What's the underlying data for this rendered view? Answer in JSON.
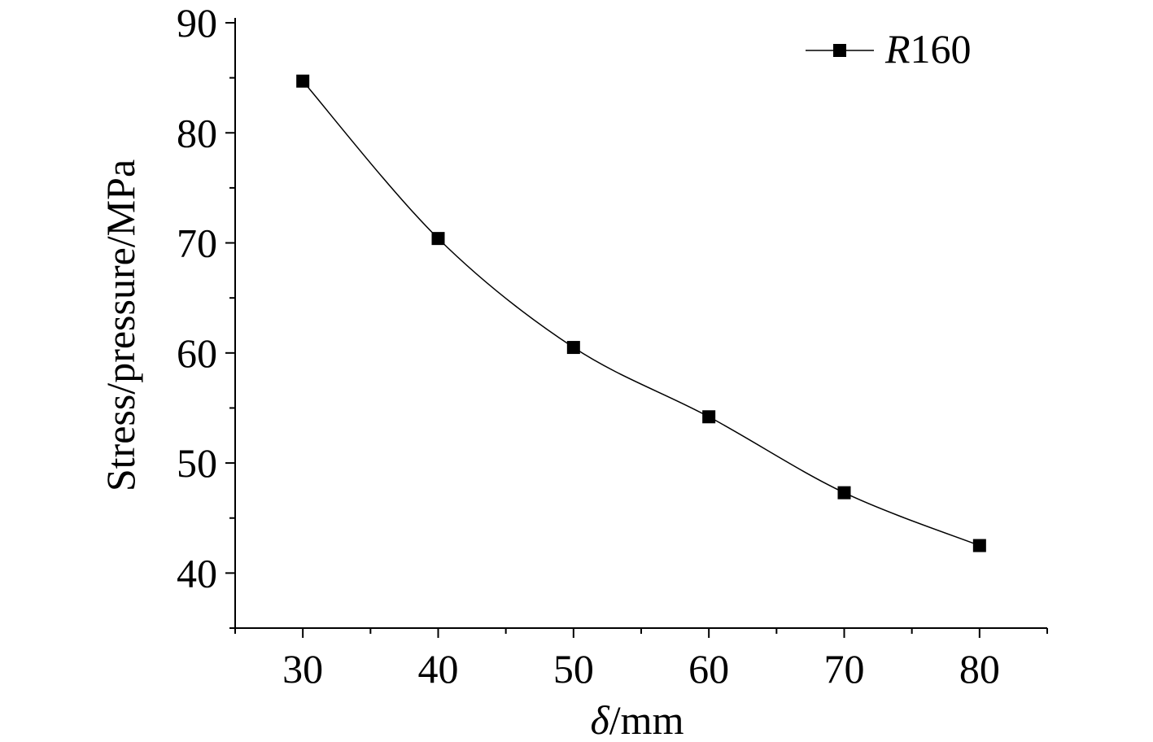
{
  "chart_data": {
    "type": "line",
    "title": "",
    "xlabel_italic": "δ",
    "xlabel_rest": "/mm",
    "ylabel": "Stress/pressure/MPa",
    "xlim": [
      25,
      85
    ],
    "ylim": [
      35,
      90
    ],
    "x_ticks": [
      30,
      40,
      50,
      60,
      70,
      80
    ],
    "y_ticks": [
      40,
      50,
      60,
      70,
      80,
      90
    ],
    "grid": false,
    "legend_position": "top-right",
    "series": [
      {
        "name_italic": "R",
        "name_rest": "160",
        "marker": "square",
        "color": "#000000",
        "x": [
          30,
          40,
          50,
          60,
          70,
          80
        ],
        "y": [
          84.7,
          70.4,
          60.5,
          54.2,
          47.3,
          42.5
        ]
      }
    ]
  }
}
